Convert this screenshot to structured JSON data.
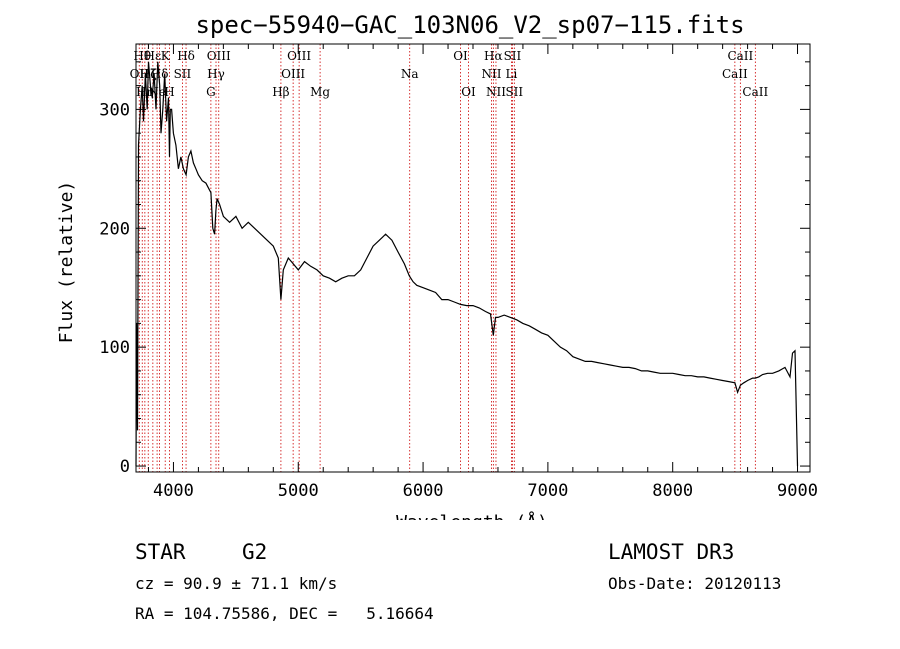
{
  "chart_data": {
    "type": "line",
    "title": "spec−55940−GAC_103N06_V2_sp07−115.fits",
    "xlabel": "Wavelength (Å)",
    "ylabel": "Flux (relative)",
    "xlim": [
      3700,
      9100
    ],
    "ylim": [
      -5,
      355
    ],
    "xticks": [
      4000,
      5000,
      6000,
      7000,
      8000,
      9000
    ],
    "yticks": [
      0,
      100,
      200,
      300
    ],
    "series": [
      {
        "name": "flux",
        "x": [
          3700,
          3705,
          3712,
          3720,
          3735,
          3750,
          3760,
          3775,
          3790,
          3800,
          3815,
          3830,
          3845,
          3860,
          3875,
          3890,
          3900,
          3915,
          3930,
          3945,
          3960,
          3968,
          3975,
          3985,
          4000,
          4020,
          4040,
          4060,
          4080,
          4101,
          4120,
          4140,
          4160,
          4180,
          4200,
          4230,
          4260,
          4290,
          4300,
          4315,
          4330,
          4340,
          4350,
          4370,
          4400,
          4450,
          4500,
          4550,
          4600,
          4650,
          4700,
          4750,
          4800,
          4840,
          4861,
          4880,
          4920,
          4960,
          5000,
          5050,
          5100,
          5150,
          5200,
          5250,
          5300,
          5350,
          5400,
          5450,
          5500,
          5550,
          5600,
          5650,
          5700,
          5750,
          5800,
          5850,
          5890,
          5920,
          5950,
          6000,
          6050,
          6100,
          6150,
          6200,
          6250,
          6300,
          6350,
          6400,
          6450,
          6500,
          6540,
          6563,
          6580,
          6600,
          6650,
          6700,
          6750,
          6800,
          6850,
          6900,
          6950,
          7000,
          7050,
          7100,
          7150,
          7200,
          7250,
          7300,
          7350,
          7400,
          7450,
          7500,
          7550,
          7600,
          7650,
          7700,
          7750,
          7800,
          7850,
          7900,
          7950,
          8000,
          8050,
          8100,
          8150,
          8200,
          8250,
          8300,
          8350,
          8400,
          8450,
          8498,
          8520,
          8542,
          8570,
          8600,
          8640,
          8662,
          8690,
          8720,
          8760,
          8800,
          8850,
          8900,
          8940,
          8960,
          8980,
          9000
        ],
        "y": [
          0,
          120,
          30,
          270,
          300,
          320,
          290,
          330,
          300,
          340,
          320,
          310,
          330,
          300,
          340,
          320,
          280,
          300,
          330,
          290,
          310,
          260,
          300,
          300,
          280,
          270,
          250,
          260,
          250,
          245,
          260,
          265,
          255,
          250,
          245,
          240,
          238,
          232,
          230,
          200,
          195,
          215,
          225,
          220,
          210,
          205,
          210,
          200,
          205,
          200,
          195,
          190,
          185,
          175,
          140,
          165,
          175,
          170,
          165,
          172,
          168,
          165,
          160,
          158,
          155,
          158,
          160,
          160,
          165,
          175,
          185,
          190,
          195,
          190,
          180,
          170,
          160,
          155,
          152,
          150,
          148,
          146,
          140,
          140,
          138,
          136,
          135,
          135,
          133,
          130,
          128,
          110,
          125,
          125,
          127,
          125,
          123,
          120,
          118,
          115,
          112,
          110,
          105,
          100,
          97,
          92,
          90,
          88,
          88,
          87,
          86,
          85,
          84,
          83,
          83,
          82,
          80,
          80,
          79,
          78,
          78,
          78,
          77,
          76,
          76,
          75,
          75,
          74,
          73,
          72,
          71,
          70,
          62,
          68,
          70,
          72,
          74,
          74,
          75,
          77,
          78,
          78,
          80,
          83,
          75,
          95,
          97,
          0
        ]
      }
    ],
    "line_markers": [
      {
        "x": 3726,
        "labels": [
          "OII"
        ],
        "row": 1
      },
      {
        "x": 3750,
        "labels": [
          "Hθ"
        ],
        "row": 0
      },
      {
        "x": 3771,
        "labels": [
          "Hη"
        ],
        "row": 2
      },
      {
        "x": 3798,
        "labels": [
          "Hζ"
        ],
        "row": 1
      },
      {
        "x": 3835,
        "labels": [
          "Hε"
        ],
        "row": 0
      },
      {
        "x": 3869,
        "labels": [
          "Ne"
        ],
        "row": 2
      },
      {
        "x": 3889,
        "labels": [
          "Hδ"
        ],
        "row": 1
      },
      {
        "x": 3934,
        "labels": [
          "K"
        ],
        "row": 0
      },
      {
        "x": 3968,
        "labels": [
          "H"
        ],
        "row": 2
      },
      {
        "x": 4072,
        "labels": [
          "SII"
        ],
        "row": 1
      },
      {
        "x": 4101,
        "labels": [
          "Hδ"
        ],
        "row": 0
      },
      {
        "x": 4300,
        "labels": [
          "G"
        ],
        "row": 2
      },
      {
        "x": 4341,
        "labels": [
          "Hγ"
        ],
        "row": 1
      },
      {
        "x": 4363,
        "labels": [
          "OIII"
        ],
        "row": 0
      },
      {
        "x": 4861,
        "labels": [
          "Hβ"
        ],
        "row": 2
      },
      {
        "x": 4959,
        "labels": [
          "OIII"
        ],
        "row": 1
      },
      {
        "x": 5007,
        "labels": [
          "OIII"
        ],
        "row": 0
      },
      {
        "x": 5175,
        "labels": [
          "Mg"
        ],
        "row": 2
      },
      {
        "x": 5893,
        "labels": [
          "Na"
        ],
        "row": 1
      },
      {
        "x": 6300,
        "labels": [
          "OI"
        ],
        "row": 0
      },
      {
        "x": 6364,
        "labels": [
          "OI"
        ],
        "row": 2
      },
      {
        "x": 6548,
        "labels": [
          "NII"
        ],
        "row": 1
      },
      {
        "x": 6563,
        "labels": [
          "Hα"
        ],
        "row": 0
      },
      {
        "x": 6584,
        "labels": [
          "NII"
        ],
        "row": 2
      },
      {
        "x": 6708,
        "labels": [
          "Li"
        ],
        "row": 1
      },
      {
        "x": 6716,
        "labels": [
          "SII"
        ],
        "row": 0
      },
      {
        "x": 6731,
        "labels": [
          "SII"
        ],
        "row": 2
      },
      {
        "x": 8498,
        "labels": [
          "CaII"
        ],
        "row": 1
      },
      {
        "x": 8542,
        "labels": [
          "CaII"
        ],
        "row": 0
      },
      {
        "x": 8662,
        "labels": [
          "CaII"
        ],
        "row": 2
      }
    ],
    "marker_color": "#cc0000"
  },
  "info": {
    "class_label": "STAR",
    "subclass": "G2",
    "cz": "cz = 90.9 ± 71.1 km/s",
    "radec": "RA = 104.75586, DEC =   5.16664",
    "survey": "LAMOST DR3",
    "obs_date": "Obs-Date: 20120113"
  }
}
